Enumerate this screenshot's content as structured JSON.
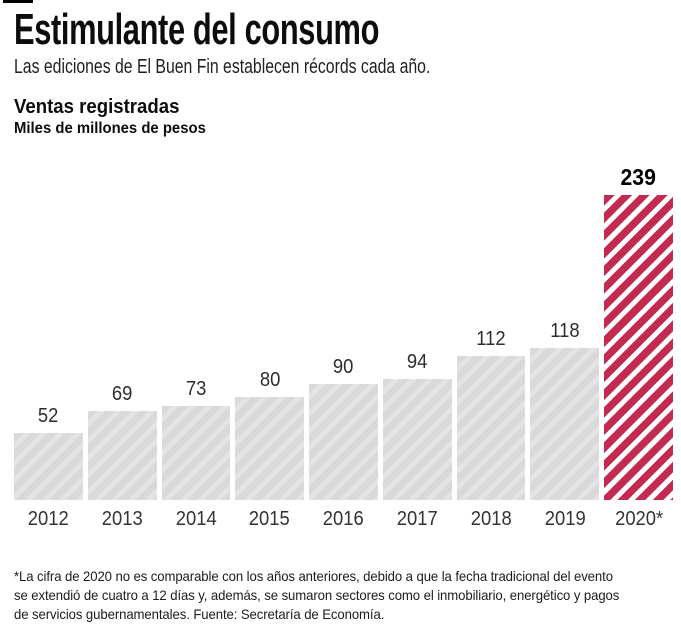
{
  "header": {
    "title": "Estimulante del consumo",
    "subtitle": "Las ediciones de El Buen Fin establecen récords cada año."
  },
  "chart_data": {
    "type": "bar",
    "title": "Ventas registradas",
    "ylabel": "Miles de millones de pesos",
    "categories": [
      "2012",
      "2013",
      "2014",
      "2015",
      "2016",
      "2017",
      "2018",
      "2019",
      "2020*"
    ],
    "values": [
      52,
      69,
      73,
      80,
      90,
      94,
      112,
      118,
      239
    ],
    "highlight_index": 8,
    "data_labels": true,
    "grid": false,
    "legend": "none",
    "ylim": [
      0,
      250
    ],
    "bar_color": "#d9d9d9",
    "bar_hatch_color": "#e4e4e4",
    "highlight_color": "#c32a51",
    "highlight_hatch": "diagonal-stripes",
    "label_color": "#2d2d2d",
    "axis_label_color": "#333333"
  },
  "footnote": {
    "lines": [
      "*La cifra de 2020 no es comparable con los años anteriores, debido a que la fecha tradicional del evento",
      "se extendió de cuatro a 12 días y, además, se sumaron sectores como el inmobiliario, energético y pagos",
      "de servicios gubernamentales. Fuente: Secretaría de Economía."
    ]
  }
}
